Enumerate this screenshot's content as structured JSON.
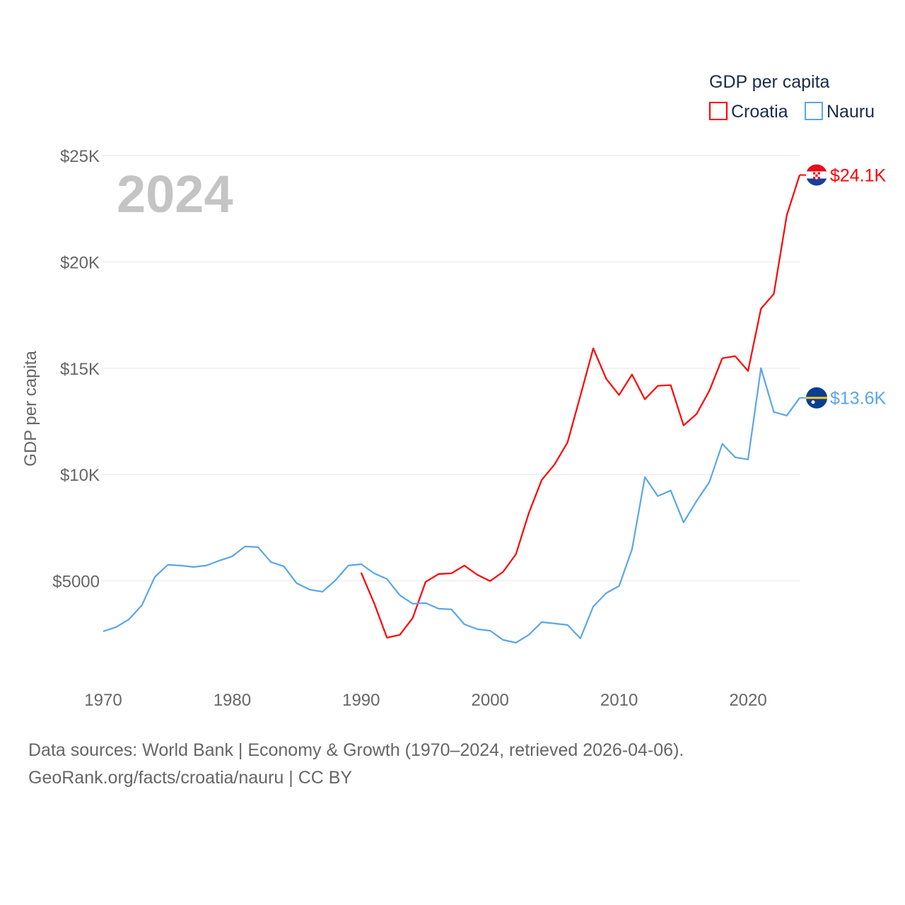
{
  "chart_data": {
    "type": "line",
    "title": "GDP per capita",
    "year_label": "2024",
    "ylabel": "GDP per capita",
    "xlabel": "",
    "ylim": [
      0,
      25000
    ],
    "xlim": [
      1970,
      2024
    ],
    "grid": true,
    "legend_position": "top-right",
    "x_ticks": [
      1970,
      1980,
      1990,
      2000,
      2010,
      2020
    ],
    "x_tick_labels": [
      "1970",
      "1980",
      "1990",
      "2000",
      "2010",
      "2020"
    ],
    "y_ticks": [
      5000,
      10000,
      15000,
      20000,
      25000
    ],
    "y_tick_labels": [
      "$5000",
      "$10K",
      "$15K",
      "$20K",
      "$25K"
    ],
    "series": [
      {
        "name": "Croatia",
        "color": "#ff0000",
        "end_label": "$24.1K",
        "start_year": 1990,
        "values": [
          5389,
          3959,
          2329,
          2462,
          3260,
          4957,
          5323,
          5356,
          5722,
          5290,
          4990,
          5423,
          6254,
          8184,
          9747,
          10479,
          11511,
          13706,
          15935,
          14505,
          13739,
          14704,
          13540,
          14172,
          14205,
          12309,
          12841,
          13939,
          15469,
          15569,
          14871,
          17798,
          18497,
          22190,
          24086
        ]
      },
      {
        "name": "Nauru",
        "color": "#5aa6ea",
        "end_label": "$13.6K",
        "start_year": 1970,
        "values": [
          2628,
          2828,
          3194,
          3859,
          5190,
          5755,
          5722,
          5655,
          5722,
          5955,
          6154,
          6620,
          6587,
          5888,
          5689,
          4890,
          4591,
          4491,
          5023,
          5722,
          5788,
          5356,
          5090,
          4325,
          3925,
          3959,
          3693,
          3659,
          2961,
          2728,
          2661,
          2229,
          2096,
          2462,
          3061,
          2994,
          2928,
          2296,
          3792,
          4425,
          4757,
          6487,
          9880,
          8982,
          9248,
          7751,
          8749,
          9647,
          11444,
          10812,
          10712,
          15004,
          12941,
          12774,
          13606
        ]
      }
    ]
  },
  "footer": {
    "line1": "Data sources: World Bank | Economy & Growth (1970–2024, retrieved 2026-04-06).",
    "line2": "GeoRank.org/facts/croatia/nauru | CC BY"
  }
}
